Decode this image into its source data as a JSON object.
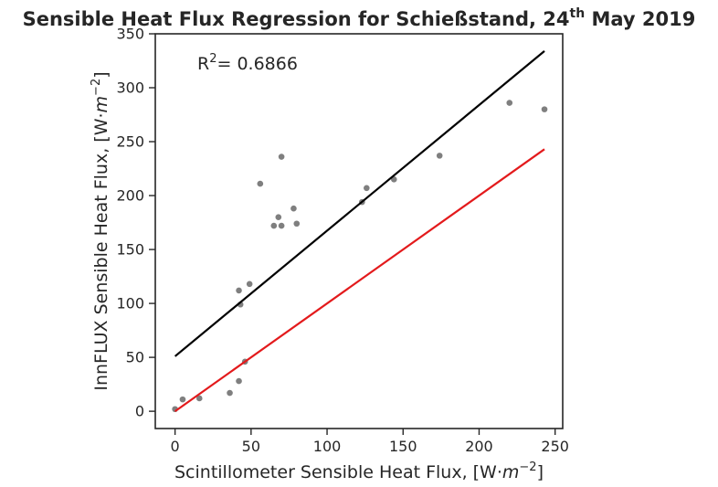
{
  "chart_data": {
    "type": "scatter",
    "title": "Sensible Heat Flux Regression for Schießstand, 24",
    "title_sup": "th",
    "title_tail": " May 2019",
    "xlabel": "Scintillometer Sensible Heat Flux, [W·",
    "xlabel_unit_base": "m",
    "xlabel_unit_exp": "−2",
    "ylabel": "InnFLUX Sensible Heat Flux, [W·",
    "ylabel_unit_base": "m",
    "ylabel_unit_exp": "−2",
    "xlim": [
      -13,
      255
    ],
    "ylim": [
      -16,
      350
    ],
    "xticks": [
      0,
      50,
      100,
      150,
      200,
      250
    ],
    "yticks": [
      0,
      50,
      100,
      150,
      200,
      250,
      300,
      350
    ],
    "grid": false,
    "point_color": "#7f7f7f",
    "points": [
      {
        "x": 0,
        "y": 2
      },
      {
        "x": 5,
        "y": 11
      },
      {
        "x": 16,
        "y": 12
      },
      {
        "x": 36,
        "y": 17
      },
      {
        "x": 42,
        "y": 28
      },
      {
        "x": 46,
        "y": 46
      },
      {
        "x": 42,
        "y": 112
      },
      {
        "x": 43,
        "y": 99
      },
      {
        "x": 49,
        "y": 118
      },
      {
        "x": 56,
        "y": 211
      },
      {
        "x": 65,
        "y": 172
      },
      {
        "x": 68,
        "y": 180
      },
      {
        "x": 70,
        "y": 236
      },
      {
        "x": 70,
        "y": 172
      },
      {
        "x": 78,
        "y": 188
      },
      {
        "x": 80,
        "y": 174
      },
      {
        "x": 123,
        "y": 194
      },
      {
        "x": 126,
        "y": 207
      },
      {
        "x": 144,
        "y": 215
      },
      {
        "x": 174,
        "y": 237
      },
      {
        "x": 220,
        "y": 286
      },
      {
        "x": 243,
        "y": 280
      }
    ],
    "lines": [
      {
        "color": "#000000",
        "x": [
          0,
          243
        ],
        "y": [
          51,
          334
        ]
      },
      {
        "color": "#e31a1c",
        "x": [
          0,
          243
        ],
        "y": [
          0,
          243
        ]
      }
    ],
    "annotation": {
      "prefix": "R",
      "sup": "2",
      "text": "= 0.6866"
    }
  }
}
